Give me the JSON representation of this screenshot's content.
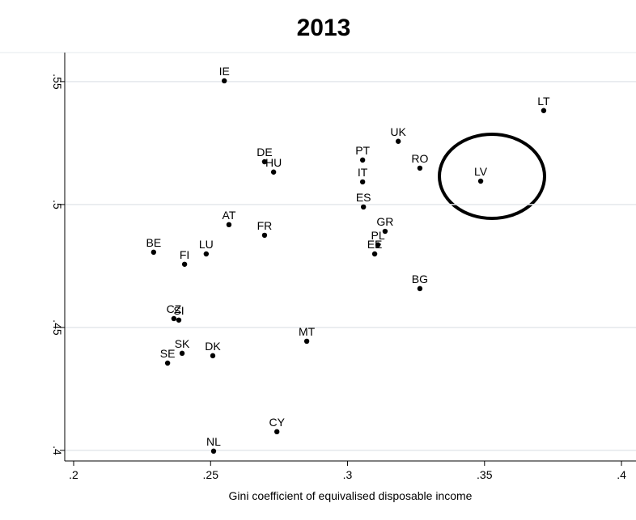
{
  "chart_data": {
    "type": "scatter",
    "title": "2013",
    "xlabel": "Gini coefficient of equivalised disposable income",
    "labels": [
      "IE",
      "LT",
      "UK",
      "PT",
      "RO",
      "LV",
      "DE",
      "HU",
      "IT",
      "ES",
      "AT",
      "FR",
      "GR",
      "PL",
      "EE",
      "BE",
      "LU",
      "FI",
      "BG",
      "CZ",
      "SI",
      "MT",
      "SK",
      "DK",
      "SE",
      "CY",
      "NL"
    ],
    "x": [
      0.255,
      0.3716,
      0.3185,
      0.3055,
      0.3264,
      0.3486,
      0.2697,
      0.273,
      0.3055,
      0.3058,
      0.2567,
      0.2697,
      0.3137,
      0.3111,
      0.3099,
      0.2292,
      0.2484,
      0.2405,
      0.3264,
      0.2366,
      0.2384,
      0.2851,
      0.2396,
      0.2508,
      0.2343,
      0.2742,
      0.2511
    ],
    "y": [
      0.5503,
      0.5382,
      0.5257,
      0.5181,
      0.5148,
      0.5095,
      0.5174,
      0.5132,
      0.5092,
      0.499,
      0.4918,
      0.4875,
      0.4891,
      0.4836,
      0.4799,
      0.4806,
      0.4799,
      0.4757,
      0.4658,
      0.4536,
      0.453,
      0.4444,
      0.4395,
      0.4385,
      0.4355,
      0.4076,
      0.3997
    ],
    "color": "#000000",
    "xlim": [
      0.19675,
      0.4053
    ],
    "ylim": [
      0.3957,
      0.5618
    ],
    "xticks": [
      {
        "value": 0.2,
        "label": ".2"
      },
      {
        "value": 0.25,
        "label": ".25"
      },
      {
        "value": 0.3,
        "label": ".3"
      },
      {
        "value": 0.35,
        "label": ".35"
      },
      {
        "value": 0.4,
        "label": ".4"
      }
    ],
    "yticks": [
      {
        "value": 0.4,
        "label": ".4"
      },
      {
        "value": 0.45,
        "label": ".45"
      },
      {
        "value": 0.5,
        "label": ".5"
      },
      {
        "value": 0.55,
        "label": ".55"
      }
    ],
    "grid": true
  }
}
